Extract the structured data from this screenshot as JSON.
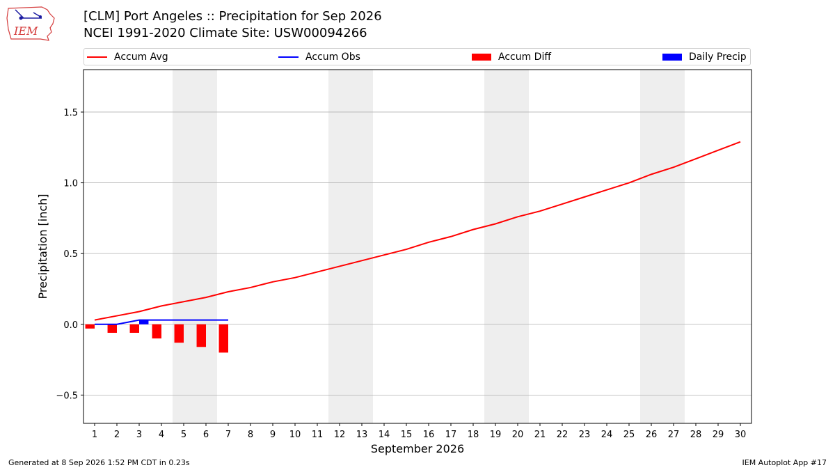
{
  "header": {
    "title_line1": "[CLM] Port Angeles :: Precipitation for Sep 2026",
    "title_line2": "NCEI 1991-2020 Climate Site: USW00094266",
    "logo_text": "IEM"
  },
  "footer": {
    "left": "Generated at 8 Sep 2026 1:52 PM CDT in 0.23s",
    "right": "IEM Autoplot App #17"
  },
  "colors": {
    "avg": "#ff0000",
    "obs": "#0000ff",
    "diff": "#ff0000",
    "daily": "#0000ff",
    "weekend": "#eeeeee",
    "grid": "#b0b0b0"
  },
  "legend": [
    {
      "label": "Accum Avg",
      "kind": "line",
      "color": "#ff0000"
    },
    {
      "label": "Accum Obs",
      "kind": "line",
      "color": "#0000ff"
    },
    {
      "label": "Accum Diff",
      "kind": "box",
      "color": "#ff0000"
    },
    {
      "label": "Daily Precip",
      "kind": "box",
      "color": "#0000ff"
    }
  ],
  "chart_data": {
    "type": "bar",
    "xlabel": "September 2026",
    "ylabel": "Precipitation [inch]",
    "xlim": [
      0.5,
      30.5
    ],
    "ylim": [
      -0.7,
      1.8
    ],
    "yticks": [
      -0.5,
      0.0,
      0.5,
      1.0,
      1.5
    ],
    "ytick_labels": [
      "−0.5",
      "0.0",
      "0.5",
      "1.0",
      "1.5"
    ],
    "x": [
      1,
      2,
      3,
      4,
      5,
      6,
      7,
      8,
      9,
      10,
      11,
      12,
      13,
      14,
      15,
      16,
      17,
      18,
      19,
      20,
      21,
      22,
      23,
      24,
      25,
      26,
      27,
      28,
      29,
      30
    ],
    "weekend_ranges": [
      [
        4.5,
        6.5
      ],
      [
        11.5,
        13.5
      ],
      [
        18.5,
        20.5
      ],
      [
        25.5,
        27.5
      ]
    ],
    "grid": "horizontal",
    "legend_position": "top",
    "series": [
      {
        "name": "Accum Avg",
        "type": "line",
        "x": [
          1,
          2,
          3,
          4,
          5,
          6,
          7,
          8,
          9,
          10,
          11,
          12,
          13,
          14,
          15,
          16,
          17,
          18,
          19,
          20,
          21,
          22,
          23,
          24,
          25,
          26,
          27,
          28,
          29,
          30
        ],
        "values": [
          0.03,
          0.06,
          0.09,
          0.13,
          0.16,
          0.19,
          0.23,
          0.26,
          0.3,
          0.33,
          0.37,
          0.41,
          0.45,
          0.49,
          0.53,
          0.58,
          0.62,
          0.67,
          0.71,
          0.76,
          0.8,
          0.85,
          0.9,
          0.95,
          1.0,
          1.06,
          1.11,
          1.17,
          1.23,
          1.29
        ]
      },
      {
        "name": "Accum Obs",
        "type": "line",
        "x": [
          1,
          2,
          3,
          4,
          5,
          6,
          7
        ],
        "values": [
          0.0,
          0.0,
          0.03,
          0.03,
          0.03,
          0.03,
          0.03
        ]
      },
      {
        "name": "Accum Diff",
        "type": "bar",
        "x": [
          1,
          2,
          3,
          4,
          5,
          6,
          7
        ],
        "values": [
          -0.03,
          -0.06,
          -0.06,
          -0.1,
          -0.13,
          -0.16,
          -0.2
        ]
      },
      {
        "name": "Daily Precip",
        "type": "bar",
        "x": [
          1,
          2,
          3,
          4,
          5,
          6,
          7
        ],
        "values": [
          0.0,
          0.0,
          0.03,
          0.0,
          0.0,
          0.0,
          0.0
        ]
      }
    ]
  }
}
